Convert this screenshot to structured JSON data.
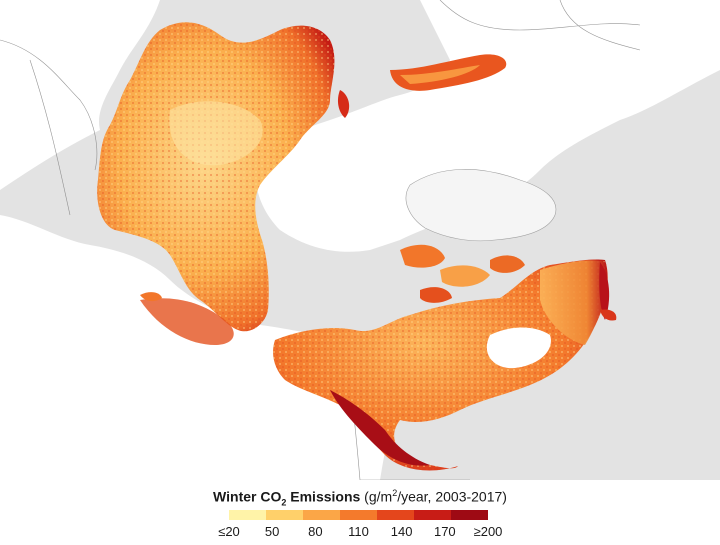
{
  "legend": {
    "title_bold_prefix": "Winter CO",
    "title_subscript": "2",
    "title_bold_suffix": " Emissions",
    "units_prefix": " (g/m",
    "units_superscript": "2",
    "units_suffix": "/year, 2003-2017)",
    "tick_labels": [
      "≤20",
      "50",
      "80",
      "110",
      "140",
      "170",
      "≥200"
    ],
    "colors": [
      "#fff3a8",
      "#ffd06a",
      "#fba647",
      "#f47a2c",
      "#e4461c",
      "#c81c16",
      "#9e0a14"
    ]
  },
  "colors": {
    "land": "#e3e3e3",
    "ocean": "#ffffff",
    "greenland": "#f5f5f5",
    "border": "#7a7a7a"
  }
}
